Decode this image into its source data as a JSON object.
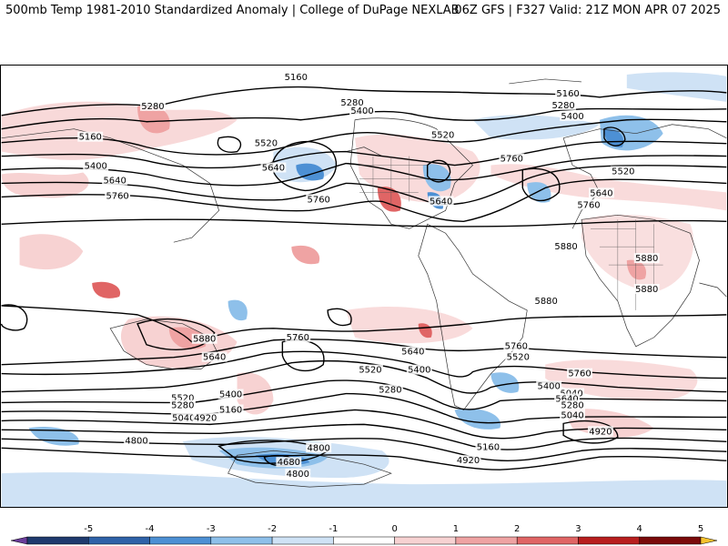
{
  "header": {
    "left_title": "500mb Temp 1981-2010 Standardized Anomaly | College of DuPage NEXLAB",
    "right_title": "06Z GFS | F327 Valid: 21Z MON APR 07 2025"
  },
  "colorbar": {
    "labels": [
      "-5",
      "-4",
      "-3",
      "-2",
      "-1",
      "0",
      "1",
      "2",
      "3",
      "4",
      "5"
    ],
    "colors": [
      "#6a3d9a",
      "#1f3a6e",
      "#2f62a8",
      "#4d90d4",
      "#8ec0ea",
      "#cfe2f5",
      "#ffffff",
      "#f7d2d2",
      "#efa3a3",
      "#e06565",
      "#b81e1e",
      "#7a0a0a",
      "#f6c22e"
    ]
  },
  "contour_labels": [
    {
      "text": "5160"
    },
    {
      "text": "5280"
    },
    {
      "text": "5160"
    },
    {
      "text": "5400"
    },
    {
      "text": "5640"
    },
    {
      "text": "5760"
    },
    {
      "text": "5520"
    },
    {
      "text": "5640"
    },
    {
      "text": "5760"
    },
    {
      "text": "5280"
    },
    {
      "text": "5400"
    },
    {
      "text": "5520"
    },
    {
      "text": "5640"
    },
    {
      "text": "5760"
    },
    {
      "text": "5160"
    },
    {
      "text": "5280"
    },
    {
      "text": "5400"
    },
    {
      "text": "5520"
    },
    {
      "text": "5640"
    },
    {
      "text": "5760"
    },
    {
      "text": "5880"
    },
    {
      "text": "5880"
    },
    {
      "text": "5880"
    },
    {
      "text": "5880"
    },
    {
      "text": "5880"
    },
    {
      "text": "5760"
    },
    {
      "text": "5760"
    },
    {
      "text": "5640"
    },
    {
      "text": "5520"
    },
    {
      "text": "5400"
    },
    {
      "text": "5280"
    },
    {
      "text": "5160"
    },
    {
      "text": "5040"
    },
    {
      "text": "4920"
    },
    {
      "text": "5640"
    },
    {
      "text": "5400"
    },
    {
      "text": "5520"
    },
    {
      "text": "5280"
    },
    {
      "text": "5040"
    },
    {
      "text": "5760"
    },
    {
      "text": "5520"
    },
    {
      "text": "5400"
    },
    {
      "text": "5640"
    },
    {
      "text": "5280"
    },
    {
      "text": "5040"
    },
    {
      "text": "5160"
    },
    {
      "text": "4920"
    },
    {
      "text": "4920"
    },
    {
      "text": "4800"
    },
    {
      "text": "4800"
    },
    {
      "text": "4680"
    },
    {
      "text": "4800"
    }
  ]
}
